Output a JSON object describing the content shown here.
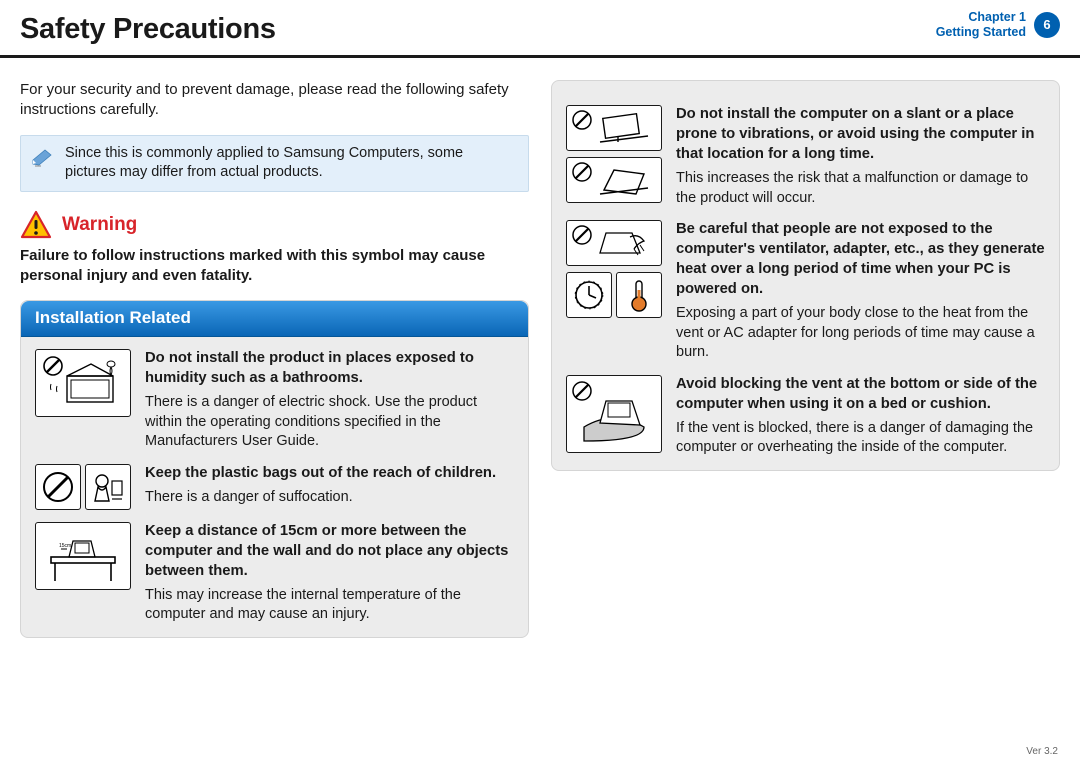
{
  "header": {
    "title": "Safety Precautions",
    "chapter_line1": "Chapter 1",
    "chapter_line2": "Getting Started",
    "page_number": "6"
  },
  "intro": "For your security and to prevent damage, please read the following safety instructions carefully.",
  "note": "Since this is commonly applied to Samsung Computers, some pictures may differ from actual products.",
  "warning": {
    "label": "Warning",
    "text": "Failure to follow instructions marked with this symbol may cause personal injury and even fatality."
  },
  "section_title": "Installation Related",
  "left_items": [
    {
      "bold": "Do not install the product in places exposed to humidity such as a bathrooms.",
      "body": "There is a danger of electric shock. Use the product within the operating conditions specified in the Manufacturers User Guide."
    },
    {
      "bold": "Keep the plastic bags out of the reach of children.",
      "body": "There is a danger of suffocation."
    },
    {
      "bold": "Keep a distance of 15cm or more between the computer and the wall and do not place any objects between them.",
      "body": "This may increase the internal temperature of the computer and may cause an injury."
    }
  ],
  "right_items": [
    {
      "bold": "Do not install the computer on a slant or a place prone to vibrations, or avoid using the computer in that location for a long time.",
      "body": "This increases the risk that a malfunction or damage to the product will occur."
    },
    {
      "bold": "Be careful that people are not exposed to the computer's ventilator, adapter, etc., as they generate heat over a long period of time when your PC is powered on.",
      "body": "Exposing a part of your body close to the heat from the vent or AC adapter for long periods of time may cause a burn."
    },
    {
      "bold": "Avoid blocking the vent at the bottom or side of the computer when using it on a bed or cushion.",
      "body": "If the vent is blocked, there is a danger of damaging the computer or overheating the inside of the computer."
    }
  ],
  "version": "Ver 3.2"
}
